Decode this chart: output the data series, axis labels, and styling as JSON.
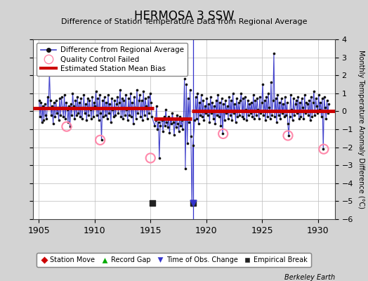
{
  "title": "HERMOSA 3 SSW",
  "subtitle": "Difference of Station Temperature Data from Regional Average",
  "ylabel": "Monthly Temperature Anomaly Difference (°C)",
  "xlabel_bottom": "Berkeley Earth",
  "xlim": [
    1904.5,
    1931.5
  ],
  "ylim": [
    -6,
    4
  ],
  "yticks": [
    -6,
    -5,
    -4,
    -3,
    -2,
    -1,
    0,
    1,
    2,
    3,
    4
  ],
  "xticks": [
    1905,
    1910,
    1915,
    1920,
    1925,
    1930
  ],
  "background_color": "#d3d3d3",
  "plot_bg_color": "#ffffff",
  "grid_color": "#bbbbbb",
  "line_color": "#4444cc",
  "dot_color": "#111111",
  "bias_color": "#cc0000",
  "qc_color": "#ff88aa",
  "time_obs_marker_color": "#3333cc",
  "emp_break_color": "#222222",
  "station_move_color": "#cc0000",
  "record_gap_color": "#00aa00",
  "segments": [
    {
      "start": 1904.5,
      "end": 1915.3,
      "bias": 0.18
    },
    {
      "start": 1915.3,
      "end": 1918.7,
      "bias": -0.42
    },
    {
      "start": 1918.7,
      "end": 1931.5,
      "bias": 0.03
    }
  ],
  "empirical_breaks": [
    1915.17,
    1918.83
  ],
  "time_obs_changes": [
    1918.83
  ],
  "qc_failed_points": [
    [
      1907.5,
      -0.85
    ],
    [
      1910.5,
      -1.6
    ],
    [
      1915.0,
      -2.6
    ],
    [
      1921.5,
      -1.25
    ],
    [
      1927.3,
      -1.35
    ],
    [
      1930.5,
      -2.1
    ]
  ],
  "monthly_data": [
    [
      1905.04,
      0.6
    ],
    [
      1905.12,
      -0.3
    ],
    [
      1905.21,
      0.5
    ],
    [
      1905.29,
      -0.6
    ],
    [
      1905.37,
      0.3
    ],
    [
      1905.46,
      -0.5
    ],
    [
      1905.54,
      0.4
    ],
    [
      1905.62,
      -0.2
    ],
    [
      1905.71,
      -0.4
    ],
    [
      1905.79,
      0.8
    ],
    [
      1905.87,
      0.2
    ],
    [
      1905.96,
      2.2
    ],
    [
      1906.04,
      0.6
    ],
    [
      1906.12,
      -0.2
    ],
    [
      1906.21,
      0.3
    ],
    [
      1906.29,
      -0.7
    ],
    [
      1906.37,
      0.5
    ],
    [
      1906.46,
      -0.3
    ],
    [
      1906.54,
      0.6
    ],
    [
      1906.62,
      -0.1
    ],
    [
      1906.71,
      0.2
    ],
    [
      1906.79,
      -0.5
    ],
    [
      1906.87,
      0.7
    ],
    [
      1906.96,
      -0.2
    ],
    [
      1907.04,
      0.8
    ],
    [
      1907.12,
      0.2
    ],
    [
      1907.21,
      -0.3
    ],
    [
      1907.29,
      0.9
    ],
    [
      1907.37,
      -0.4
    ],
    [
      1907.46,
      0.5
    ],
    [
      1907.54,
      0.1
    ],
    [
      1907.62,
      -0.6
    ],
    [
      1907.71,
      0.3
    ],
    [
      1907.79,
      -0.85
    ],
    [
      1907.87,
      0.4
    ],
    [
      1907.96,
      -0.2
    ],
    [
      1908.04,
      1.0
    ],
    [
      1908.12,
      0.3
    ],
    [
      1908.21,
      -0.4
    ],
    [
      1908.29,
      0.6
    ],
    [
      1908.37,
      -0.2
    ],
    [
      1908.46,
      0.8
    ],
    [
      1908.54,
      -0.1
    ],
    [
      1908.62,
      0.5
    ],
    [
      1908.71,
      -0.3
    ],
    [
      1908.79,
      0.7
    ],
    [
      1908.87,
      -0.4
    ],
    [
      1908.96,
      0.2
    ],
    [
      1909.04,
      0.9
    ],
    [
      1909.12,
      -0.1
    ],
    [
      1909.21,
      0.4
    ],
    [
      1909.29,
      -0.5
    ],
    [
      1909.37,
      0.7
    ],
    [
      1909.46,
      -0.2
    ],
    [
      1909.54,
      0.6
    ],
    [
      1909.62,
      0.1
    ],
    [
      1909.71,
      -0.4
    ],
    [
      1909.79,
      0.8
    ],
    [
      1909.87,
      -0.3
    ],
    [
      1909.96,
      0.5
    ],
    [
      1910.04,
      0.3
    ],
    [
      1910.12,
      1.1
    ],
    [
      1910.21,
      -0.2
    ],
    [
      1910.29,
      0.7
    ],
    [
      1910.37,
      -0.5
    ],
    [
      1910.46,
      0.9
    ],
    [
      1910.54,
      -0.1
    ],
    [
      1910.62,
      -1.6
    ],
    [
      1910.71,
      0.6
    ],
    [
      1910.79,
      -0.3
    ],
    [
      1910.87,
      0.8
    ],
    [
      1910.96,
      -0.2
    ],
    [
      1911.04,
      0.5
    ],
    [
      1911.12,
      -0.4
    ],
    [
      1911.21,
      0.9
    ],
    [
      1911.29,
      -0.1
    ],
    [
      1911.37,
      0.4
    ],
    [
      1911.46,
      -0.6
    ],
    [
      1911.54,
      0.7
    ],
    [
      1911.62,
      0.1
    ],
    [
      1911.71,
      -0.3
    ],
    [
      1911.79,
      0.6
    ],
    [
      1911.87,
      -0.2
    ],
    [
      1911.96,
      0.4
    ],
    [
      1912.04,
      0.8
    ],
    [
      1912.12,
      -0.1
    ],
    [
      1912.21,
      0.5
    ],
    [
      1912.29,
      1.2
    ],
    [
      1912.37,
      -0.3
    ],
    [
      1912.46,
      0.7
    ],
    [
      1912.54,
      -0.4
    ],
    [
      1912.62,
      0.6
    ],
    [
      1912.71,
      -0.2
    ],
    [
      1912.79,
      0.9
    ],
    [
      1912.87,
      0.1
    ],
    [
      1912.96,
      -0.5
    ],
    [
      1913.04,
      0.7
    ],
    [
      1913.12,
      -0.2
    ],
    [
      1913.21,
      1.0
    ],
    [
      1913.29,
      -0.3
    ],
    [
      1913.37,
      0.5
    ],
    [
      1913.46,
      -0.7
    ],
    [
      1913.54,
      0.8
    ],
    [
      1913.62,
      0.2
    ],
    [
      1913.71,
      -0.4
    ],
    [
      1913.79,
      1.2
    ],
    [
      1913.87,
      -0.1
    ],
    [
      1913.96,
      0.6
    ],
    [
      1914.04,
      0.9
    ],
    [
      1914.12,
      -0.3
    ],
    [
      1914.21,
      0.6
    ],
    [
      1914.29,
      -0.5
    ],
    [
      1914.37,
      1.1
    ],
    [
      1914.46,
      -0.2
    ],
    [
      1914.54,
      0.7
    ],
    [
      1914.62,
      0.3
    ],
    [
      1914.71,
      -0.4
    ],
    [
      1914.79,
      0.8
    ],
    [
      1914.87,
      -0.1
    ],
    [
      1914.96,
      1.0
    ],
    [
      1915.04,
      0.5
    ],
    [
      1915.12,
      -0.3
    ],
    [
      1915.37,
      -0.8
    ],
    [
      1915.46,
      -0.5
    ],
    [
      1915.54,
      0.3
    ],
    [
      1915.62,
      -1.0
    ],
    [
      1915.71,
      -0.6
    ],
    [
      1915.79,
      -2.6
    ],
    [
      1915.87,
      -0.8
    ],
    [
      1915.96,
      -0.4
    ],
    [
      1916.04,
      -0.5
    ],
    [
      1916.12,
      -1.1
    ],
    [
      1916.21,
      -0.3
    ],
    [
      1916.29,
      -0.8
    ],
    [
      1916.37,
      0.1
    ],
    [
      1916.46,
      -0.6
    ],
    [
      1916.54,
      -0.9
    ],
    [
      1916.62,
      -0.3
    ],
    [
      1916.71,
      -1.2
    ],
    [
      1916.79,
      -0.4
    ],
    [
      1916.87,
      -0.7
    ],
    [
      1916.96,
      -0.1
    ],
    [
      1917.04,
      -0.6
    ],
    [
      1917.12,
      -1.3
    ],
    [
      1917.21,
      -0.4
    ],
    [
      1917.29,
      -0.9
    ],
    [
      1917.37,
      -0.2
    ],
    [
      1917.46,
      -0.7
    ],
    [
      1917.54,
      -1.1
    ],
    [
      1917.62,
      -0.3
    ],
    [
      1917.71,
      -0.8
    ],
    [
      1917.79,
      -0.5
    ],
    [
      1917.87,
      -1.0
    ],
    [
      1917.96,
      -0.4
    ],
    [
      1918.04,
      1.8
    ],
    [
      1918.12,
      -3.2
    ],
    [
      1918.21,
      1.5
    ],
    [
      1918.29,
      -1.8
    ],
    [
      1918.37,
      0.7
    ],
    [
      1918.46,
      -0.6
    ],
    [
      1918.54,
      1.2
    ],
    [
      1918.62,
      -1.4
    ],
    [
      1918.71,
      -5.2
    ],
    [
      1918.79,
      -1.9
    ],
    [
      1918.96,
      -0.5
    ],
    [
      1919.04,
      0.8
    ],
    [
      1919.12,
      -0.4
    ],
    [
      1919.21,
      1.0
    ],
    [
      1919.29,
      -0.7
    ],
    [
      1919.37,
      0.5
    ],
    [
      1919.46,
      -0.2
    ],
    [
      1919.54,
      0.9
    ],
    [
      1919.62,
      -0.3
    ],
    [
      1919.71,
      0.6
    ],
    [
      1919.79,
      -0.5
    ],
    [
      1919.87,
      0.3
    ],
    [
      1919.96,
      -0.1
    ],
    [
      1920.04,
      0.7
    ],
    [
      1920.12,
      -0.2
    ],
    [
      1920.21,
      0.4
    ],
    [
      1920.29,
      -0.6
    ],
    [
      1920.37,
      0.8
    ],
    [
      1920.46,
      -0.1
    ],
    [
      1920.54,
      0.5
    ],
    [
      1920.62,
      -0.4
    ],
    [
      1920.71,
      0.3
    ],
    [
      1920.79,
      -0.7
    ],
    [
      1920.87,
      0.6
    ],
    [
      1920.96,
      -0.2
    ],
    [
      1921.04,
      0.9
    ],
    [
      1921.12,
      -0.3
    ],
    [
      1921.21,
      0.5
    ],
    [
      1921.29,
      -0.8
    ],
    [
      1921.37,
      0.7
    ],
    [
      1921.46,
      -1.25
    ],
    [
      1921.54,
      0.4
    ],
    [
      1921.62,
      -0.5
    ],
    [
      1921.71,
      0.6
    ],
    [
      1921.79,
      -0.1
    ],
    [
      1921.87,
      0.3
    ],
    [
      1921.96,
      -0.4
    ],
    [
      1922.04,
      0.8
    ],
    [
      1922.12,
      -0.2
    ],
    [
      1922.21,
      0.6
    ],
    [
      1922.29,
      -0.5
    ],
    [
      1922.37,
      1.0
    ],
    [
      1922.46,
      -0.1
    ],
    [
      1922.54,
      0.4
    ],
    [
      1922.62,
      -0.6
    ],
    [
      1922.71,
      0.7
    ],
    [
      1922.79,
      -0.3
    ],
    [
      1922.87,
      0.5
    ],
    [
      1922.96,
      -0.2
    ],
    [
      1923.04,
      0.6
    ],
    [
      1923.12,
      1.0
    ],
    [
      1923.21,
      -0.3
    ],
    [
      1923.29,
      0.7
    ],
    [
      1923.37,
      -0.4
    ],
    [
      1923.46,
      0.8
    ],
    [
      1923.54,
      0.1
    ],
    [
      1923.62,
      -0.5
    ],
    [
      1923.71,
      0.6
    ],
    [
      1923.79,
      -0.2
    ],
    [
      1923.87,
      0.4
    ],
    [
      1923.96,
      -0.1
    ],
    [
      1924.04,
      0.5
    ],
    [
      1924.12,
      -0.3
    ],
    [
      1924.21,
      0.9
    ],
    [
      1924.29,
      -0.4
    ],
    [
      1924.37,
      0.6
    ],
    [
      1924.46,
      -0.2
    ],
    [
      1924.54,
      0.7
    ],
    [
      1924.62,
      0.1
    ],
    [
      1924.71,
      -0.4
    ],
    [
      1924.79,
      0.8
    ],
    [
      1924.87,
      -0.1
    ],
    [
      1924.96,
      0.5
    ],
    [
      1925.04,
      1.5
    ],
    [
      1925.12,
      -0.2
    ],
    [
      1925.21,
      0.6
    ],
    [
      1925.29,
      -0.5
    ],
    [
      1925.37,
      0.8
    ],
    [
      1925.46,
      -0.3
    ],
    [
      1925.54,
      1.0
    ],
    [
      1925.62,
      0.2
    ],
    [
      1925.71,
      -0.4
    ],
    [
      1925.79,
      1.6
    ],
    [
      1925.87,
      -0.2
    ],
    [
      1925.96,
      0.6
    ],
    [
      1926.04,
      3.2
    ],
    [
      1926.12,
      -0.3
    ],
    [
      1926.21,
      0.7
    ],
    [
      1926.29,
      -0.6
    ],
    [
      1926.37,
      0.9
    ],
    [
      1926.46,
      -0.2
    ],
    [
      1926.54,
      0.5
    ],
    [
      1926.62,
      -0.4
    ],
    [
      1926.71,
      0.7
    ],
    [
      1926.79,
      -0.1
    ],
    [
      1926.87,
      0.4
    ],
    [
      1926.96,
      -0.3
    ],
    [
      1927.04,
      0.8
    ],
    [
      1927.12,
      -0.2
    ],
    [
      1927.21,
      0.5
    ],
    [
      1927.29,
      -0.7
    ],
    [
      1927.37,
      -1.35
    ],
    [
      1927.46,
      -0.3
    ],
    [
      1927.54,
      0.9
    ],
    [
      1927.62,
      0.1
    ],
    [
      1927.71,
      -0.5
    ],
    [
      1927.79,
      0.7
    ],
    [
      1927.87,
      -0.2
    ],
    [
      1927.96,
      0.4
    ],
    [
      1928.04,
      0.6
    ],
    [
      1928.12,
      -0.1
    ],
    [
      1928.21,
      0.8
    ],
    [
      1928.29,
      -0.4
    ],
    [
      1928.37,
      0.5
    ],
    [
      1928.46,
      -0.3
    ],
    [
      1928.54,
      0.7
    ],
    [
      1928.62,
      0.2
    ],
    [
      1928.71,
      -0.4
    ],
    [
      1928.79,
      0.9
    ],
    [
      1928.87,
      -0.1
    ],
    [
      1928.96,
      0.5
    ],
    [
      1929.04,
      0.4
    ],
    [
      1929.12,
      -0.2
    ],
    [
      1929.21,
      0.6
    ],
    [
      1929.29,
      -0.5
    ],
    [
      1929.37,
      0.8
    ],
    [
      1929.46,
      -0.3
    ],
    [
      1929.54,
      0.5
    ],
    [
      1929.62,
      1.1
    ],
    [
      1929.71,
      -0.2
    ],
    [
      1929.79,
      0.7
    ],
    [
      1929.87,
      0.3
    ],
    [
      1929.96,
      -0.1
    ],
    [
      1930.04,
      0.9
    ],
    [
      1930.12,
      0.1
    ],
    [
      1930.21,
      0.5
    ],
    [
      1930.29,
      -0.3
    ],
    [
      1930.37,
      0.7
    ],
    [
      1930.46,
      -2.1
    ],
    [
      1930.54,
      0.8
    ],
    [
      1930.62,
      0.2
    ],
    [
      1930.71,
      -0.4
    ],
    [
      1930.79,
      0.6
    ],
    [
      1930.87,
      -0.1
    ],
    [
      1930.96,
      0.4
    ]
  ]
}
